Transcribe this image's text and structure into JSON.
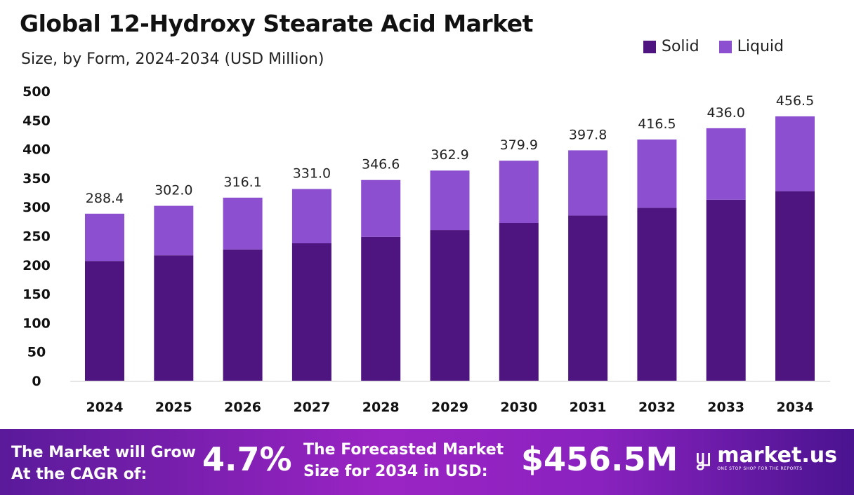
{
  "chart_data": {
    "type": "bar",
    "stacked": true,
    "title": "Global 12-Hydroxy Stearate Acid Market",
    "subtitle": "Size, by Form, 2024-2034 (USD Million)",
    "categories": [
      "2024",
      "2025",
      "2026",
      "2027",
      "2028",
      "2029",
      "2030",
      "2031",
      "2032",
      "2033",
      "2034"
    ],
    "series": [
      {
        "name": "Solid",
        "color": "#4e1581",
        "values": [
          206.8,
          216.5,
          226.6,
          237.3,
          248.5,
          260.2,
          272.4,
          285.2,
          298.6,
          312.6,
          327.3
        ]
      },
      {
        "name": "Liquid",
        "color": "#8c4fcf",
        "values": [
          81.6,
          85.5,
          89.5,
          93.7,
          98.1,
          102.7,
          107.5,
          112.6,
          117.9,
          123.4,
          129.2
        ]
      }
    ],
    "totals": [
      "288.4",
      "302.0",
      "316.1",
      "331.0",
      "346.6",
      "362.9",
      "379.9",
      "397.8",
      "416.5",
      "436.0",
      "456.5"
    ],
    "ylim": [
      0,
      500
    ],
    "yticks": [
      "0",
      "50",
      "100",
      "150",
      "200",
      "250",
      "300",
      "350",
      "400",
      "450",
      "500"
    ],
    "grid": false,
    "legend": "top-right",
    "xlabel": "",
    "ylabel": ""
  },
  "footer": {
    "cagr_label_line1": "The Market will Grow",
    "cagr_label_line2": "At the CAGR of:",
    "cagr_value": "4.7%",
    "forecast_label_line1": "The Forecasted Market",
    "forecast_label_line2": "Size for 2034 in USD:",
    "forecast_value": "$456.5M",
    "logo_text": "market.us",
    "logo_tagline": "ONE STOP SHOP FOR THE REPORTS"
  }
}
